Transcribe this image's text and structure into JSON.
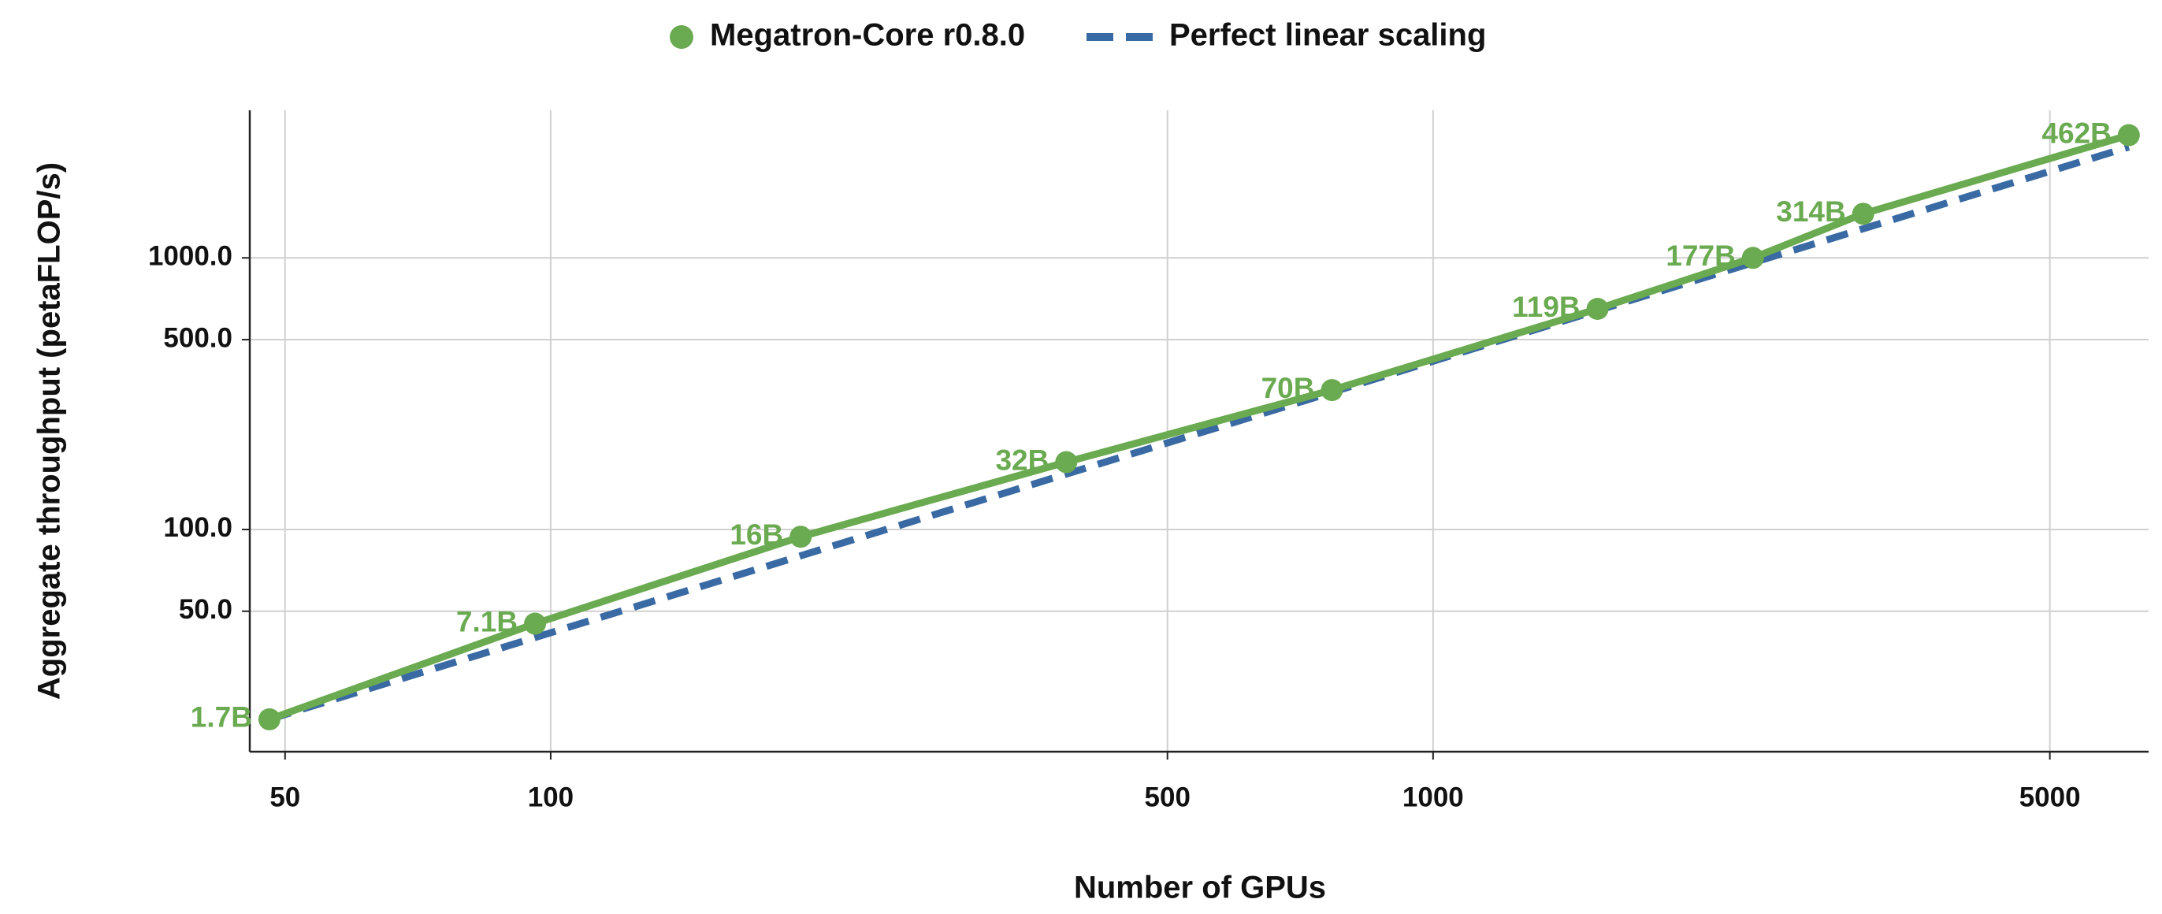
{
  "chart_data": {
    "type": "line",
    "x_label": "Number of GPUs",
    "y_label": "Aggregate throughput (petaFLOP/s)",
    "xlog": true,
    "ylog": true,
    "grid": true,
    "xlim": [
      45.6,
      6470
    ],
    "ylim": [
      15.2,
      3494
    ],
    "xticks": [
      50,
      100,
      500,
      1000,
      5000
    ],
    "yticks": [
      {
        "value": 50,
        "label": "50.0"
      },
      {
        "value": 100,
        "label": "100.0"
      },
      {
        "value": 500,
        "label": "500.0"
      },
      {
        "value": 1000,
        "label": "1000.0"
      }
    ],
    "series": [
      {
        "name": "Megatron-Core r0.8.0",
        "color": "#6aaa50",
        "line_style": "solid",
        "markers": true,
        "x": [
          48,
          96,
          192,
          384,
          768,
          1536,
          2304,
          3072,
          6144
        ],
        "values": [
          20,
          45,
          94,
          177,
          326,
          649,
          1000,
          1453,
          2830
        ],
        "point_labels": [
          "1.7B",
          "7.1B",
          "16B",
          "32B",
          "70B",
          "119B",
          "177B",
          "314B",
          "462B"
        ]
      },
      {
        "name": "Perfect linear scaling",
        "color": "#3a6aa3",
        "line_style": "dashed",
        "markers": false,
        "x": [
          48,
          6144
        ],
        "values": [
          20,
          2560
        ]
      }
    ]
  }
}
